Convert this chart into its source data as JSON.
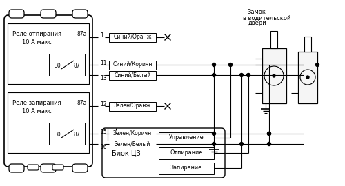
{
  "relay_unlock": {
    "label1": "Реле отпирания",
    "label2": "10 А макс",
    "pin87a": "87а",
    "pin30": "30",
    "pin87": "87",
    "wire_num_1": "1",
    "wire_num_11": "11",
    "wire_num_13": "13"
  },
  "relay_lock": {
    "label1": "Реле запирания",
    "label2": "10 А макс",
    "pin87a": "87а",
    "pin30": "30",
    "pin87": "87",
    "wire_num_12": "12",
    "wire_num_15": "15",
    "wire_num_16": "16"
  },
  "wires_unlock": [
    {
      "label": "Синий/Оранж",
      "cut": true
    },
    {
      "label": "Синий/Коричн",
      "cut": false
    },
    {
      "label": "Синий/Белый",
      "cut": false
    }
  ],
  "wires_lock": [
    {
      "label": "Зелен/Оранж",
      "cut": true
    },
    {
      "label": "Зелен/Коричн",
      "cut": false
    },
    {
      "label": "Зелен/Белый",
      "cut": false
    }
  ],
  "block_cz_label": "Блок ЦЗ",
  "block_cz_outputs": [
    "Управление",
    "Отпирание",
    "Запирание"
  ],
  "lock_label1": "Замок",
  "lock_label2": "в водительской",
  "lock_label3": "двери"
}
